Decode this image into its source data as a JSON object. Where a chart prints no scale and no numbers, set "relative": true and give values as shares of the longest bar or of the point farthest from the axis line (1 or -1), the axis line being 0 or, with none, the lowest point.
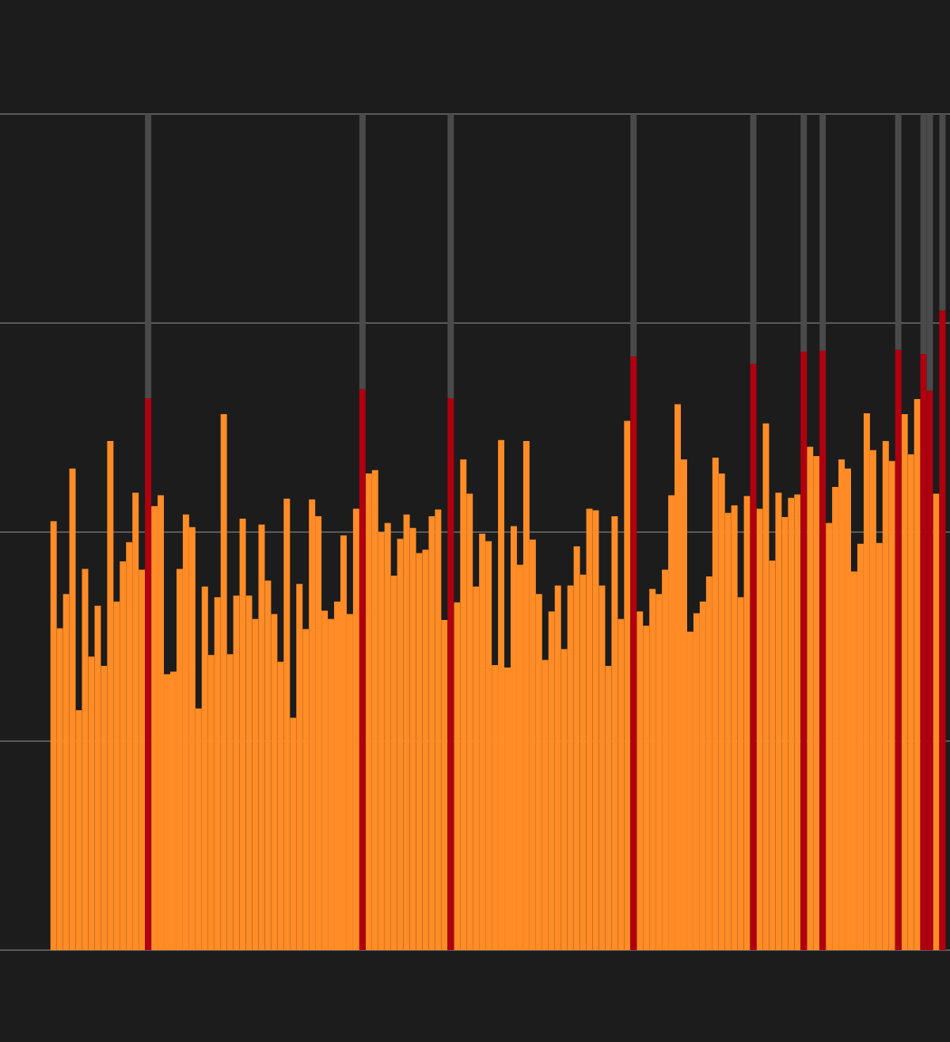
{
  "chart_data": {
    "type": "bar",
    "relative": true,
    "stacked": true,
    "grid": "y",
    "legend": false,
    "categories": [
      null,
      null,
      null,
      null,
      null,
      null,
      null,
      null,
      null,
      null,
      null,
      null,
      null,
      null,
      null,
      null,
      null,
      null,
      null,
      null,
      null,
      null,
      null,
      null,
      null,
      null,
      null,
      null,
      null,
      null,
      null,
      null,
      null,
      null,
      null,
      null,
      null,
      null,
      null,
      null,
      null,
      null,
      null,
      null,
      null,
      null,
      null,
      null,
      null,
      null,
      null,
      null,
      null,
      null,
      null,
      null,
      null,
      null,
      null,
      null,
      null,
      null,
      null,
      null,
      null,
      null,
      null,
      null,
      null,
      null,
      null,
      null,
      null,
      null,
      null,
      null,
      null,
      null,
      null,
      null,
      null,
      null,
      null,
      null,
      null,
      null,
      null,
      null,
      null,
      null,
      null,
      null,
      null,
      null,
      null,
      null,
      null,
      null,
      null,
      null,
      null,
      null,
      null,
      null,
      null,
      null,
      null,
      null,
      null,
      null,
      null,
      null,
      null,
      null,
      null,
      null,
      null,
      null,
      null,
      null,
      null,
      null,
      null,
      null,
      null,
      null,
      null,
      null,
      null,
      null,
      null,
      null,
      null,
      null,
      null,
      null,
      null,
      null,
      null,
      null,
      null,
      null
    ],
    "series": [
      {
        "color": "#ff8c26",
        "values": [
          0.513,
          0.385,
          0.426,
          0.576,
          0.287,
          0.456,
          0.351,
          0.412,
          0.34,
          0.609,
          0.417,
          0.465,
          0.488,
          0.547,
          0.455,
          null,
          0.531,
          0.544,
          0.33,
          0.333,
          0.456,
          0.521,
          0.506,
          0.289,
          0.435,
          0.353,
          0.422,
          0.641,
          0.354,
          0.424,
          0.516,
          0.424,
          0.396,
          0.509,
          0.442,
          0.402,
          0.345,
          0.54,
          0.278,
          0.438,
          0.384,
          0.539,
          0.519,
          0.406,
          0.396,
          0.417,
          0.496,
          0.402,
          0.528,
          null,
          0.57,
          0.574,
          0.5,
          0.511,
          0.448,
          0.492,
          0.521,
          0.505,
          0.475,
          0.479,
          0.519,
          0.527,
          0.395,
          null,
          0.416,
          0.587,
          0.546,
          0.435,
          0.498,
          0.489,
          0.341,
          0.61,
          0.338,
          0.507,
          0.461,
          0.609,
          0.491,
          0.426,
          0.347,
          0.405,
          0.436,
          0.36,
          0.436,
          0.483,
          0.449,
          0.528,
          0.526,
          0.436,
          0.34,
          0.519,
          0.396,
          0.633,
          null,
          0.405,
          0.388,
          0.432,
          0.426,
          0.455,
          0.544,
          0.653,
          0.587,
          0.381,
          0.403,
          0.417,
          0.447,
          0.589,
          0.57,
          0.523,
          0.532,
          0.422,
          0.543,
          null,
          0.528,
          0.63,
          0.466,
          0.547,
          0.518,
          0.541,
          0.545,
          null,
          0.602,
          0.591,
          null,
          0.511,
          0.554,
          0.587,
          0.576,
          0.453,
          0.486,
          0.642,
          0.598,
          0.487,
          0.609,
          0.585,
          null,
          0.641,
          0.593,
          0.659,
          null,
          null,
          0.546,
          null
        ]
      },
      {
        "color": "#b0000f",
        "values": [
          null,
          null,
          null,
          null,
          null,
          null,
          null,
          null,
          null,
          null,
          null,
          null,
          null,
          null,
          null,
          0.66,
          null,
          null,
          null,
          null,
          null,
          null,
          null,
          null,
          null,
          null,
          null,
          null,
          null,
          null,
          null,
          null,
          null,
          null,
          null,
          null,
          null,
          null,
          null,
          null,
          null,
          null,
          null,
          null,
          null,
          null,
          null,
          null,
          null,
          0.671,
          null,
          null,
          null,
          null,
          null,
          null,
          null,
          null,
          null,
          null,
          null,
          null,
          null,
          0.66,
          null,
          null,
          null,
          null,
          null,
          null,
          null,
          null,
          null,
          null,
          null,
          null,
          null,
          null,
          null,
          null,
          null,
          null,
          null,
          null,
          null,
          null,
          null,
          null,
          null,
          null,
          null,
          null,
          0.71,
          null,
          null,
          null,
          null,
          null,
          null,
          null,
          null,
          null,
          null,
          null,
          null,
          null,
          null,
          null,
          null,
          null,
          null,
          0.701,
          null,
          null,
          null,
          null,
          null,
          null,
          null,
          0.716,
          null,
          null,
          0.717,
          null,
          null,
          null,
          null,
          null,
          null,
          null,
          null,
          null,
          null,
          null,
          0.718,
          null,
          null,
          null,
          0.713,
          0.669,
          null,
          0.765
        ]
      },
      {
        "color": "#4a4a4a",
        "values": [
          null,
          null,
          null,
          null,
          null,
          null,
          null,
          null,
          null,
          null,
          null,
          null,
          null,
          null,
          null,
          0.34,
          null,
          null,
          null,
          null,
          null,
          null,
          null,
          null,
          null,
          null,
          null,
          null,
          null,
          null,
          null,
          null,
          null,
          null,
          null,
          null,
          null,
          null,
          null,
          null,
          null,
          null,
          null,
          null,
          null,
          null,
          null,
          null,
          null,
          0.329,
          null,
          null,
          null,
          null,
          null,
          null,
          null,
          null,
          null,
          null,
          null,
          null,
          null,
          0.34,
          null,
          null,
          null,
          null,
          null,
          null,
          null,
          null,
          null,
          null,
          null,
          null,
          null,
          null,
          null,
          null,
          null,
          null,
          null,
          null,
          null,
          null,
          null,
          null,
          null,
          null,
          null,
          null,
          0.29,
          null,
          null,
          null,
          null,
          null,
          null,
          null,
          null,
          null,
          null,
          null,
          null,
          null,
          null,
          null,
          null,
          null,
          null,
          0.299,
          null,
          null,
          null,
          null,
          null,
          null,
          null,
          0.284,
          null,
          null,
          0.283,
          null,
          null,
          null,
          null,
          null,
          null,
          null,
          null,
          null,
          null,
          null,
          0.282,
          null,
          null,
          null,
          0.287,
          0.331,
          null,
          0.235
        ]
      }
    ]
  }
}
